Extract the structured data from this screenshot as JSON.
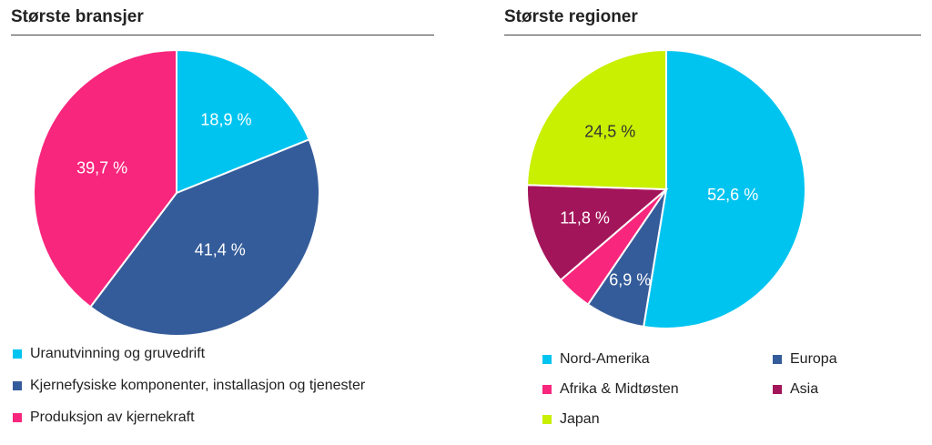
{
  "chart_data": [
    {
      "type": "pie",
      "title": "Største bransjer",
      "slices": [
        {
          "name": "Uranutvinning og gruvedrift",
          "value": 18.9,
          "label": "18,9 %",
          "color": "#00c4f0",
          "label_color": "#ffffff"
        },
        {
          "name": "Kjernefysiske komponenter, installasjon og tjenester",
          "value": 41.4,
          "label": "41,4 %",
          "color": "#355c9a",
          "label_color": "#ffffff"
        },
        {
          "name": "Produksjon av kjernekraft",
          "value": 39.7,
          "label": "39,7 %",
          "color": "#f8267c",
          "label_color": "#ffffff"
        }
      ],
      "legend_placement": "bottom"
    },
    {
      "type": "pie",
      "title": "Største regioner",
      "slices": [
        {
          "name": "Nord-Amerika",
          "value": 52.6,
          "label": "52,6 %",
          "color": "#00c4f0",
          "label_color": "#ffffff"
        },
        {
          "name": "Europa",
          "value": 6.9,
          "label": "6,9 %",
          "color": "#355c9a",
          "label_color": "#ffffff"
        },
        {
          "name": "Afrika & Midtøsten",
          "value": 4.2,
          "label": "",
          "color": "#f8267c",
          "label_color": "#ffffff"
        },
        {
          "name": "Asia",
          "value": 11.8,
          "label": "11,8 %",
          "color": "#a3155a",
          "label_color": "#ffffff"
        },
        {
          "name": "Japan",
          "value": 24.5,
          "label": "24,5 %",
          "color": "#c8f000",
          "label_color": "#333333"
        }
      ],
      "legend_placement": "bottom"
    }
  ]
}
